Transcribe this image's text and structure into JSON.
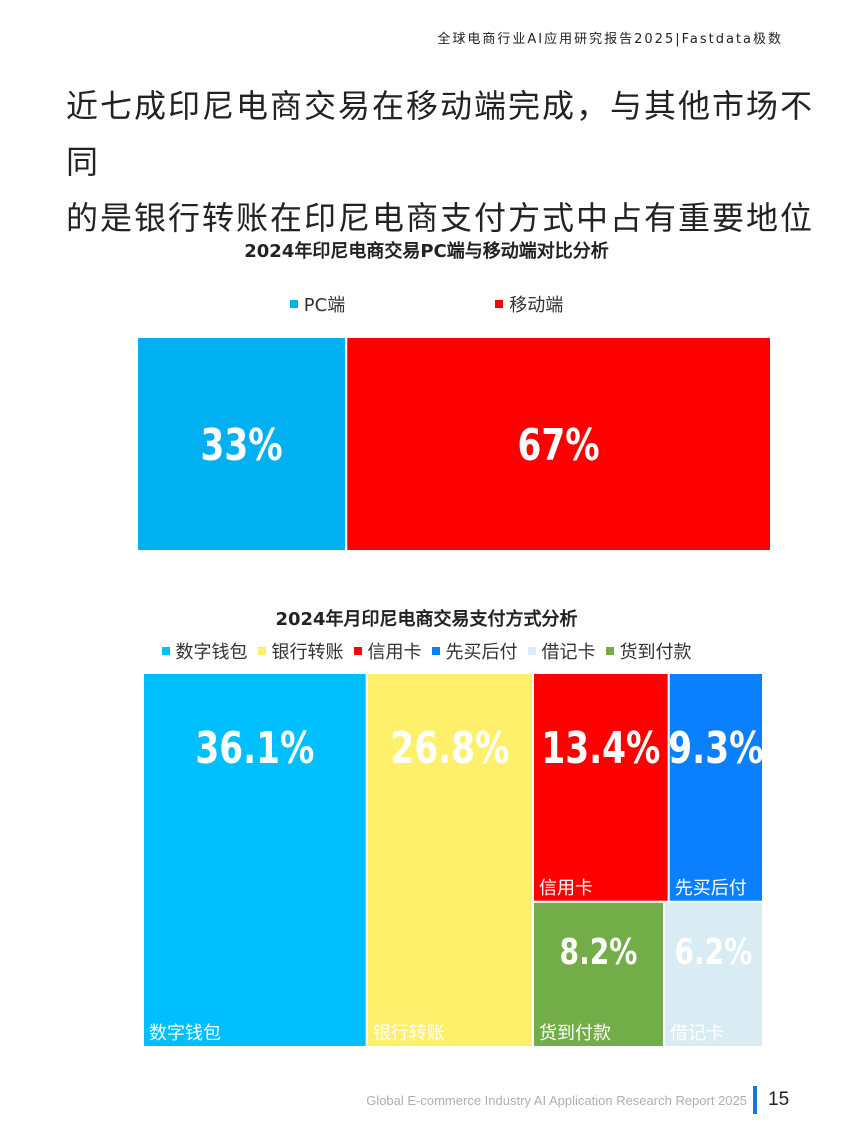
{
  "header": {
    "report_title": "全球电商行业AI应用研究报告2025|Fastdata极数"
  },
  "headline": {
    "line1": "近七成印尼电商交易在移动端完成，与其他市场不同",
    "line2": "的是银行转账在印尼电商支付方式中占有重要地位"
  },
  "chart_data": [
    {
      "type": "treemap",
      "title": "2024年印尼电商交易PC端与移动端对比分析",
      "legend_position": "top",
      "series": [
        {
          "name": "PC端",
          "value": 33,
          "value_label": "33%",
          "color": "#00b0f0",
          "tile_label": ""
        },
        {
          "name": "移动端",
          "value": 67,
          "value_label": "67%",
          "color": "#ff0000",
          "tile_label": ""
        }
      ]
    },
    {
      "type": "treemap",
      "title": "2024年月印尼电商交易支付方式分析",
      "legend_position": "top",
      "series": [
        {
          "name": "数字钱包",
          "value": 36.1,
          "value_label": "36.1%",
          "color": "#00bfff",
          "tile_label": "数字钱包"
        },
        {
          "name": "银行转账",
          "value": 26.8,
          "value_label": "26.8%",
          "color": "#fef06b",
          "tile_label": "银行转账"
        },
        {
          "name": "信用卡",
          "value": 13.4,
          "value_label": "13.4%",
          "color": "#ff0000",
          "tile_label": "信用卡"
        },
        {
          "name": "先买后付",
          "value": 9.3,
          "value_label": "9.3%",
          "color": "#0a80ff",
          "tile_label": "先买后付"
        },
        {
          "name": "借记卡",
          "value": 6.2,
          "value_label": "6.2%",
          "color": "#d9ecf3",
          "tile_label": "借记卡"
        },
        {
          "name": "货到付款",
          "value": 8.2,
          "value_label": "8.2%",
          "color": "#72ad47",
          "tile_label": "货到付款"
        }
      ]
    }
  ],
  "footer": {
    "report_name_en": "Global E-commerce Industry AI Application Research Report 2025",
    "page_number": "15"
  }
}
